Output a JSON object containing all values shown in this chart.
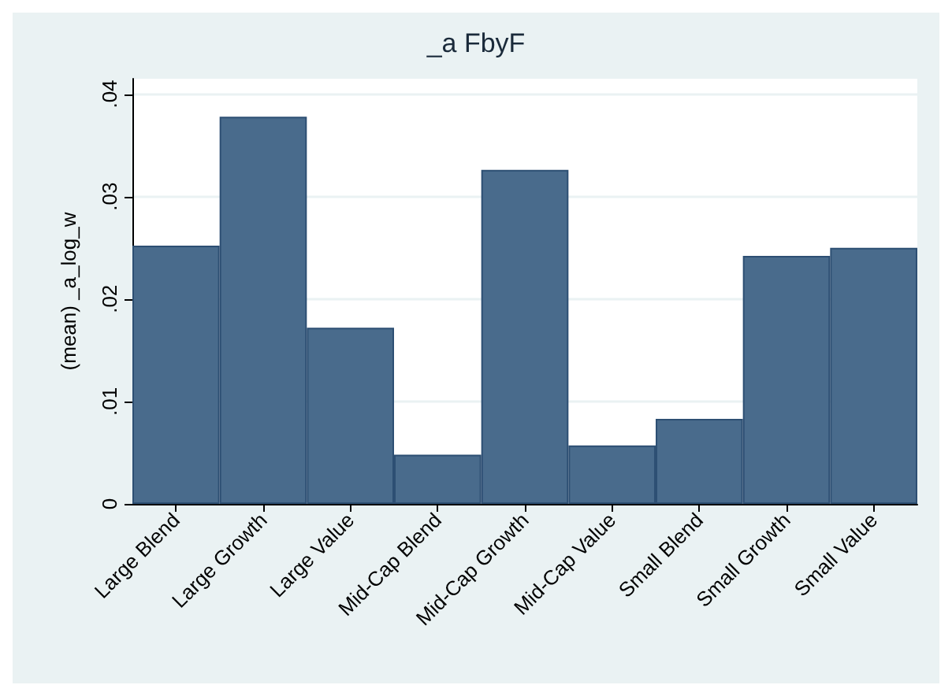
{
  "chart_data": {
    "type": "bar",
    "title": "_a FbyF",
    "ylabel": "(mean) _a_log_w",
    "categories": [
      "Large Blend",
      "Large Growth",
      "Large Value",
      "Mid-Cap Blend",
      "Mid-Cap Growth",
      "Mid-Cap Value",
      "Small Blend",
      "Small Growth",
      "Small Value"
    ],
    "values": [
      0.0252,
      0.0378,
      0.0172,
      0.0048,
      0.0326,
      0.0057,
      0.0083,
      0.0242,
      0.025
    ],
    "color": "#496b8c",
    "ylim": [
      0,
      0.0415
    ],
    "yticks": [
      0,
      {
        "value": 0.01,
        "label": ".01"
      },
      {
        "value": 0.02,
        "label": ".02"
      },
      {
        "value": 0.03,
        "label": ".03"
      },
      {
        "value": 0.04,
        "label": ".04"
      }
    ],
    "grid": "y"
  }
}
